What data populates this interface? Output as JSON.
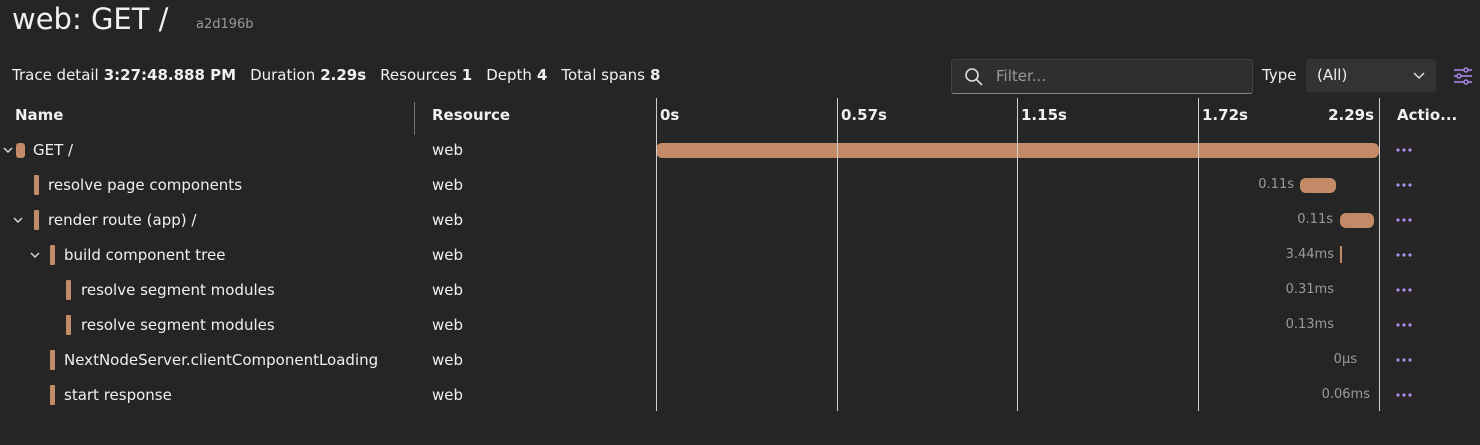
{
  "header": {
    "title": "web: GET /",
    "trace_id": "a2d196b"
  },
  "summary": [
    {
      "label": "Trace detail",
      "value": "3:27:48.888 PM"
    },
    {
      "label": "Duration",
      "value": "2.29s"
    },
    {
      "label": "Resources",
      "value": 1
    },
    {
      "label": "Depth",
      "value": 4
    },
    {
      "label": "Total spans",
      "value": 8
    }
  ],
  "toolbar": {
    "filter_placeholder": "Filter...",
    "type_label": "Type",
    "type_value": "(All)"
  },
  "table": {
    "columns": {
      "name": "Name",
      "resource": "Resource",
      "actions": "Actio..."
    },
    "timeline_ticks": [
      "0s",
      "0.57s",
      "1.15s",
      "1.72s",
      "2.29s"
    ],
    "rows": [
      {
        "name": "GET /",
        "resource": "web"
      },
      {
        "name": "resolve page components",
        "resource": "web",
        "duration": "0.11s"
      },
      {
        "name": "render route (app) /",
        "resource": "web",
        "duration": "0.11s"
      },
      {
        "name": "build component tree",
        "resource": "web",
        "duration": "3.44ms"
      },
      {
        "name": "resolve segment modules",
        "resource": "web",
        "duration": "0.31ms"
      },
      {
        "name": "resolve segment modules",
        "resource": "web",
        "duration": "0.13ms"
      },
      {
        "name": "NextNodeServer.clientComponentLoading",
        "resource": "web",
        "duration": "0µs"
      },
      {
        "name": "start response",
        "resource": "web",
        "duration": "0.06ms"
      }
    ]
  }
}
